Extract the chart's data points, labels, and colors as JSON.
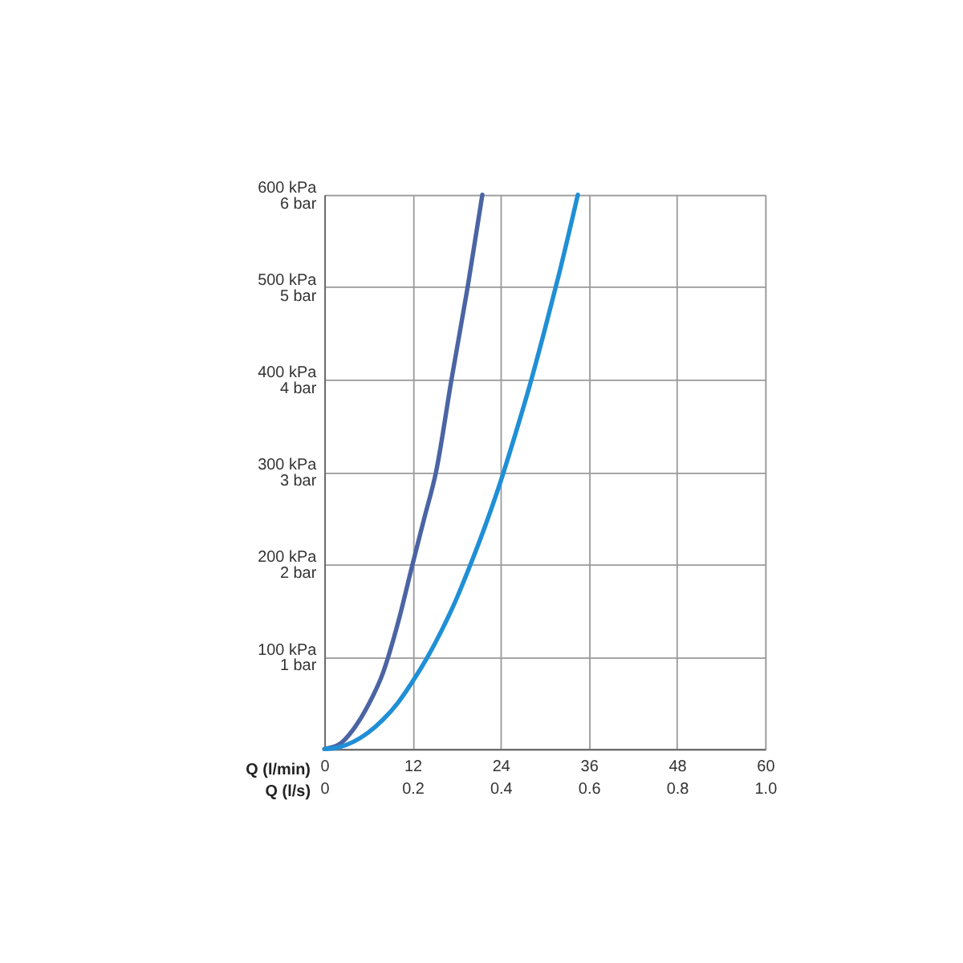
{
  "chart_data": {
    "type": "line",
    "xlabel": "Q (l/min)",
    "x2label": "Q (l/s)",
    "series": [
      {
        "color": "#4a64a4",
        "x": [
          0,
          2,
          4,
          6,
          8,
          10,
          12,
          13.6,
          15.2,
          17.3,
          19.5,
          21.5
        ],
        "values": [
          0,
          5,
          22,
          48,
          83,
          136,
          200,
          250,
          300,
          400,
          500,
          600
        ]
      },
      {
        "color": "#1f8fd6",
        "x": [
          0,
          2,
          4,
          6,
          8,
          10,
          12,
          14,
          16,
          18,
          20,
          22,
          24,
          26,
          28,
          30,
          32,
          34.5
        ],
        "values": [
          0,
          2,
          8,
          18,
          32,
          50,
          73,
          99,
          129,
          163,
          202,
          244,
          290,
          341,
          395,
          454,
          516,
          600
        ]
      }
    ],
    "xlim": [
      0,
      60
    ],
    "xticks": [
      0,
      12,
      24,
      36,
      48,
      60
    ],
    "x2lim": [
      0,
      1.0
    ],
    "x2ticks": [
      0,
      0.2,
      0.4,
      0.6,
      0.8,
      {
        "value": 1.0,
        "label": "1.0"
      }
    ],
    "ylim": [
      0,
      600
    ],
    "yticks": [
      {
        "value": 0,
        "label": null
      },
      {
        "value": 100,
        "label": "100 kPa"
      },
      {
        "value": 200,
        "label": "200 kPa"
      },
      {
        "value": 300,
        "label": "300 kPa"
      },
      {
        "value": 400,
        "label": "400 kPa"
      },
      {
        "value": 500,
        "label": "500 kPa"
      },
      {
        "value": 600,
        "label": "600 kPa"
      }
    ],
    "y2lim": [
      0,
      6
    ],
    "y2ticks": [
      {
        "value": 0,
        "label": null
      },
      {
        "value": 1,
        "label": "1 bar"
      },
      {
        "value": 2,
        "label": "2 bar"
      },
      {
        "value": 3,
        "label": "3 bar"
      },
      {
        "value": 4,
        "label": "4 bar"
      },
      {
        "value": 5,
        "label": "5 bar"
      },
      {
        "value": 6,
        "label": "6 bar"
      }
    ],
    "grid": true,
    "legend": false,
    "marker": "none",
    "line_style": "solid"
  }
}
